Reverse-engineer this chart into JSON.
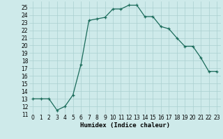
{
  "x": [
    0,
    1,
    2,
    3,
    4,
    5,
    6,
    7,
    8,
    9,
    10,
    11,
    12,
    13,
    14,
    15,
    16,
    17,
    18,
    19,
    20,
    21,
    22,
    23
  ],
  "y": [
    13,
    13,
    13,
    11.5,
    12,
    13.5,
    17.5,
    23.3,
    23.5,
    23.7,
    24.8,
    24.8,
    25.3,
    25.3,
    23.8,
    23.8,
    22.5,
    22.2,
    21.0,
    19.9,
    19.9,
    18.4,
    16.6,
    16.6
  ],
  "line_color": "#1a6b5a",
  "marker": "+",
  "bg_color": "#ceeaea",
  "grid_color": "#aacfcf",
  "xlabel": "Humidex (Indice chaleur)",
  "ylim": [
    11,
    25.8
  ],
  "xlim": [
    -0.5,
    23.5
  ],
  "yticks": [
    11,
    12,
    13,
    14,
    15,
    16,
    17,
    18,
    19,
    20,
    21,
    22,
    23,
    24,
    25
  ],
  "xticks": [
    0,
    1,
    2,
    3,
    4,
    5,
    6,
    7,
    8,
    9,
    10,
    11,
    12,
    13,
    14,
    15,
    16,
    17,
    18,
    19,
    20,
    21,
    22,
    23
  ]
}
